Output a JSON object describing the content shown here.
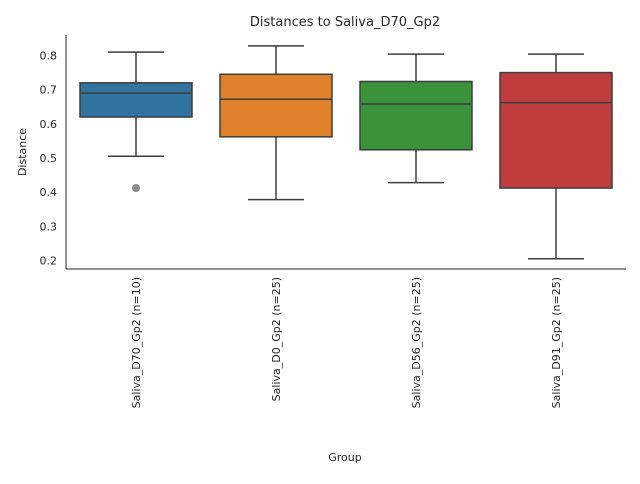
{
  "chart_data": {
    "type": "box",
    "title": "Distances to Saliva_D70_Gp2",
    "xlabel": "Group",
    "ylabel": "Distance",
    "ylim": [
      0.175,
      0.86
    ],
    "yticks": [
      0.2,
      0.3,
      0.4,
      0.5,
      0.6,
      0.7,
      0.8
    ],
    "grid": false,
    "categories": [
      "Saliva_D70_Gp2 (n=10)",
      "Saliva_D0_Gp2 (n=25)",
      "Saliva_D56_Gp2 (n=25)",
      "Saliva_D91_Gp2 (n=25)"
    ],
    "boxes": [
      {
        "category": "Saliva_D70_Gp2 (n=10)",
        "whisker_low": 0.505,
        "q1": 0.62,
        "median": 0.69,
        "q3": 0.72,
        "whisker_high": 0.81,
        "outliers": [
          0.412
        ],
        "color": "#3274a1"
      },
      {
        "category": "Saliva_D0_Gp2 (n=25)",
        "whisker_low": 0.378,
        "q1": 0.562,
        "median": 0.672,
        "q3": 0.745,
        "whisker_high": 0.828,
        "outliers": [],
        "color": "#e1812c"
      },
      {
        "category": "Saliva_D56_Gp2 (n=25)",
        "whisker_low": 0.428,
        "q1": 0.524,
        "median": 0.658,
        "q3": 0.724,
        "whisker_high": 0.804,
        "outliers": [],
        "color": "#3a923a"
      },
      {
        "category": "Saliva_D91_Gp2 (n=25)",
        "whisker_low": 0.205,
        "q1": 0.412,
        "median": 0.662,
        "q3": 0.75,
        "whisker_high": 0.804,
        "outliers": [],
        "color": "#c03d3e"
      }
    ]
  }
}
